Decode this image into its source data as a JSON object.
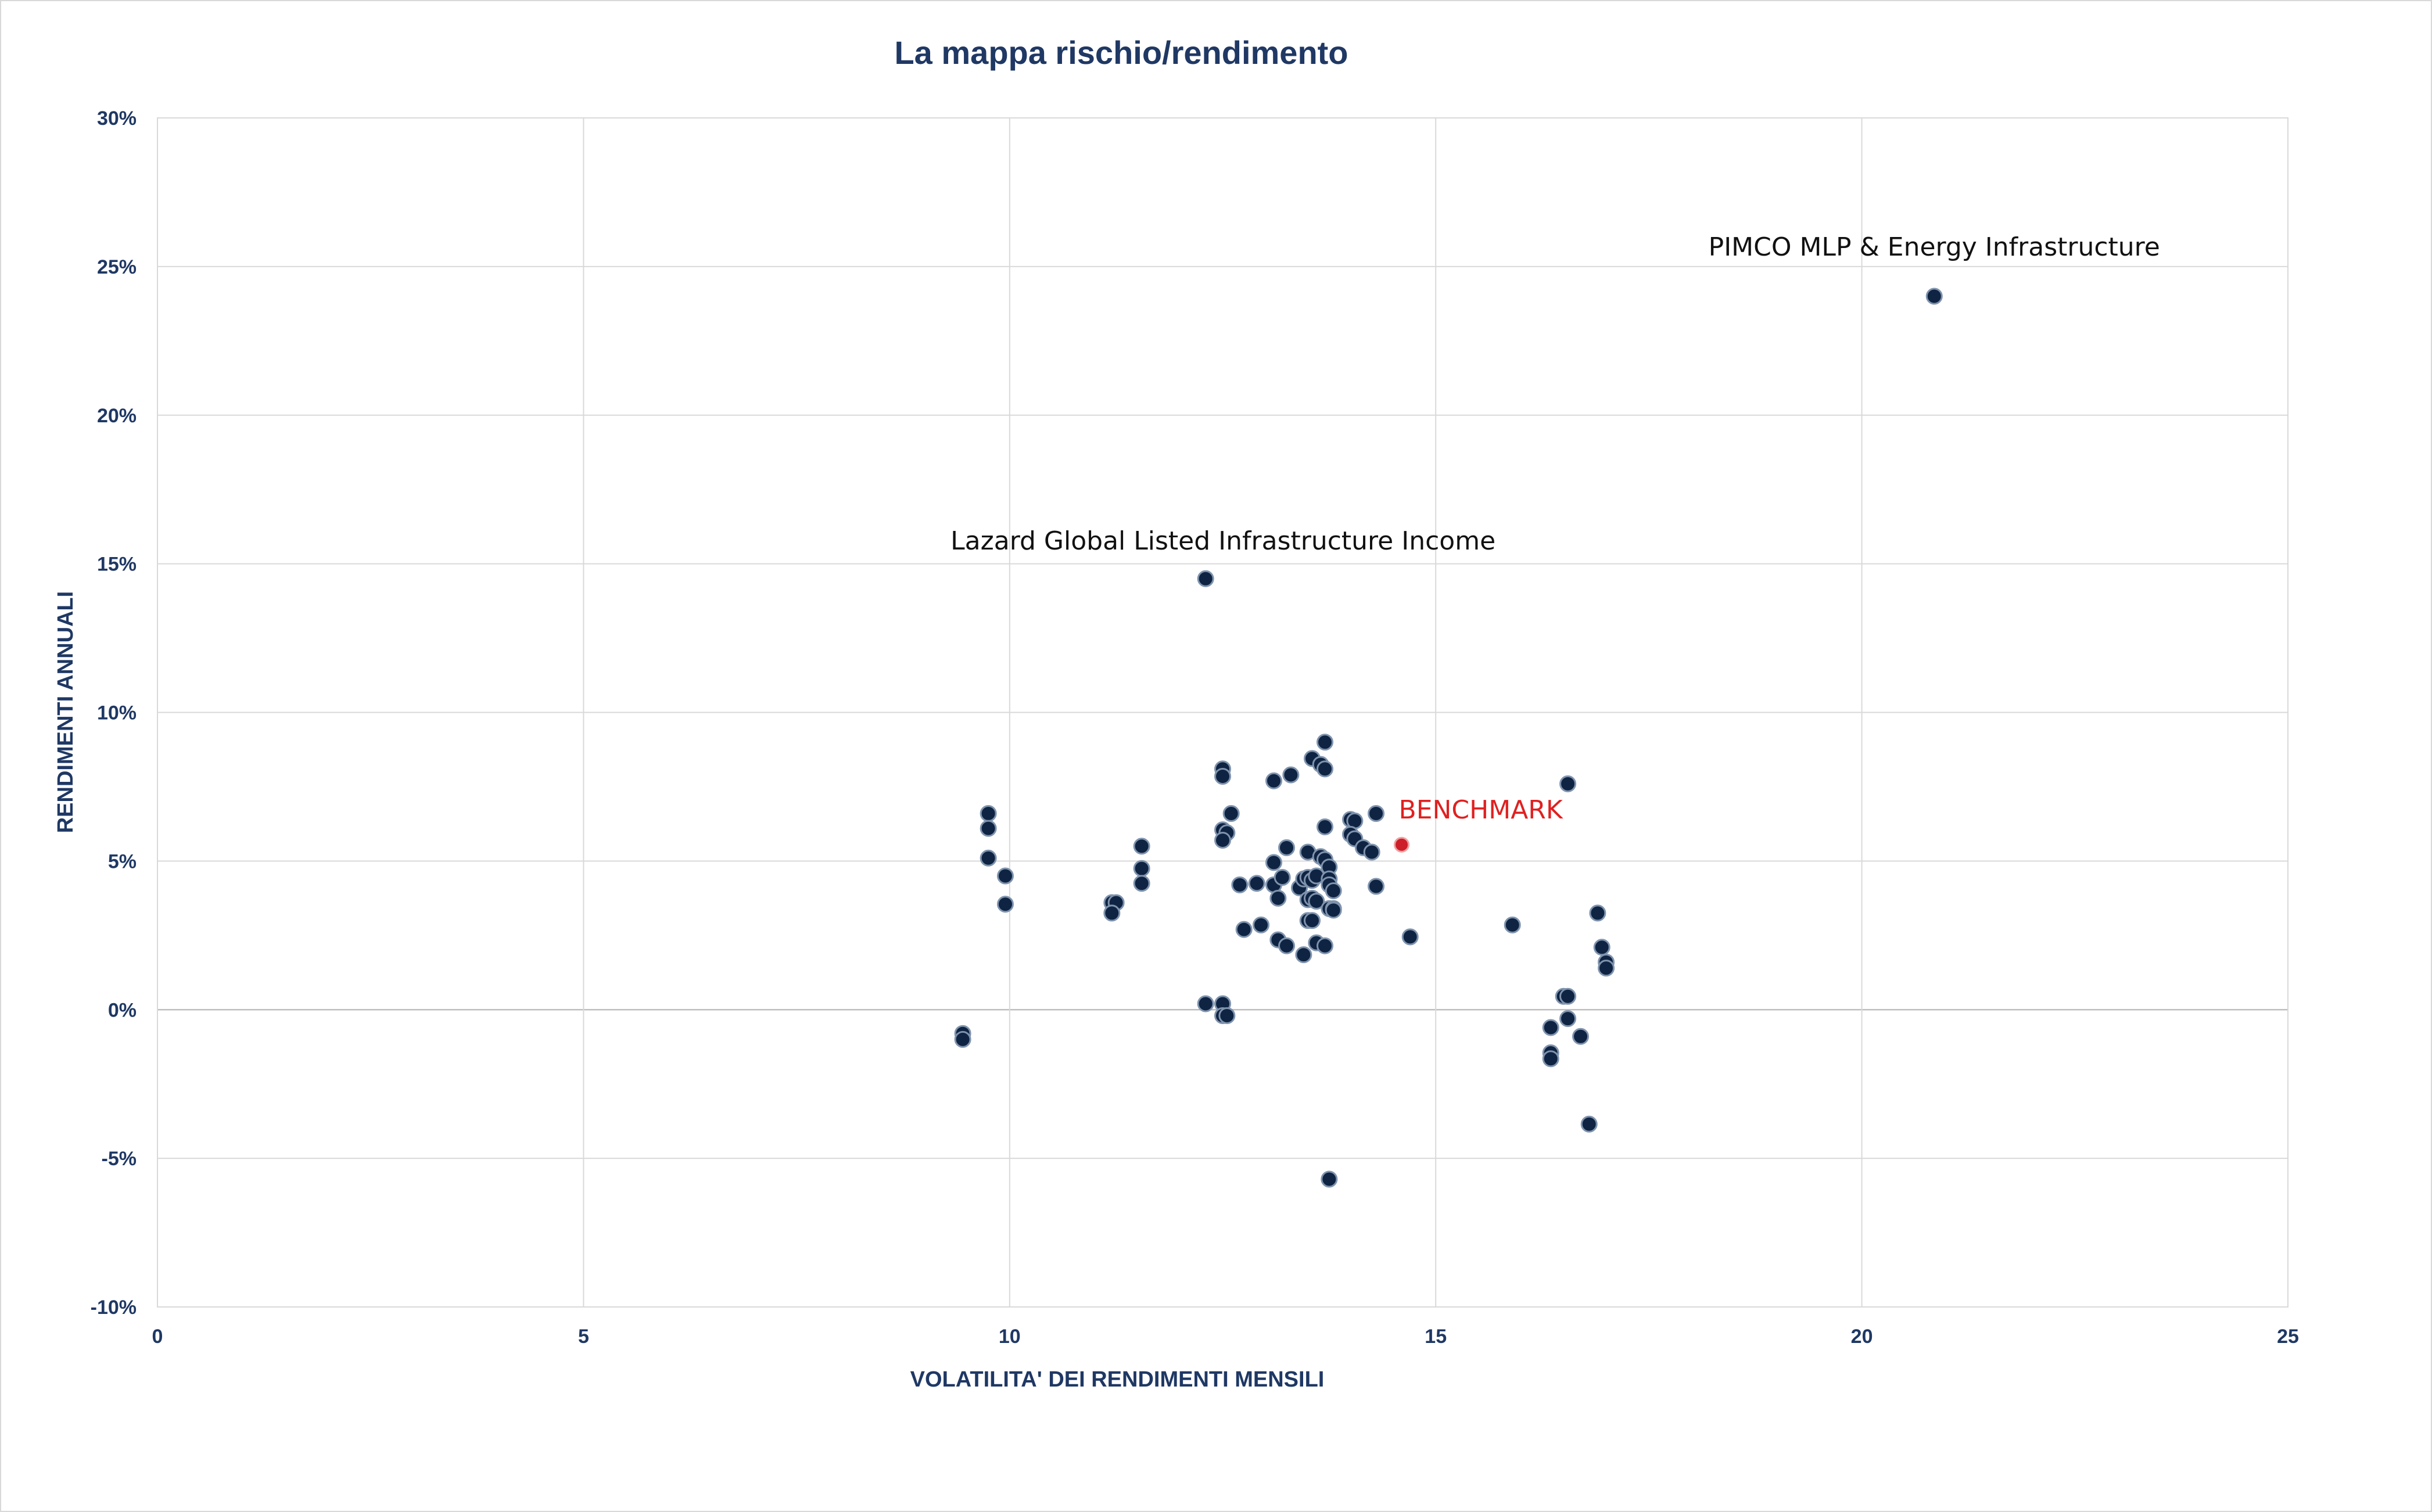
{
  "chart_data": {
    "type": "scatter",
    "title": "La mappa rischio/rendimento",
    "xlabel": "VOLATILITA' DEI RENDIMENTI MENSILI",
    "ylabel": "RENDIMENTI ANNUALI",
    "xlim": [
      0,
      25
    ],
    "ylim": [
      -10,
      30
    ],
    "xticks": [
      0,
      5,
      10,
      15,
      20,
      25
    ],
    "yticks": [
      -10,
      -5,
      0,
      5,
      10,
      15,
      20,
      25,
      30
    ],
    "ytick_labels": [
      "-10%",
      "-5%",
      "0%",
      "5%",
      "10%",
      "15%",
      "20%",
      "25%",
      "30%"
    ],
    "grid": true,
    "colors": {
      "point": "#0f2442",
      "benchmark": "#cc1f2a",
      "text": "#1f3864"
    },
    "series": [
      {
        "points": [
          [
            20.85,
            24.0
          ],
          [
            12.3,
            14.5
          ],
          [
            16.55,
            7.6
          ],
          [
            9.45,
            -0.8
          ],
          [
            9.45,
            -1.0
          ],
          [
            9.75,
            6.6
          ],
          [
            9.75,
            6.1
          ],
          [
            9.75,
            5.1
          ],
          [
            9.95,
            4.5
          ],
          [
            9.95,
            3.55
          ],
          [
            11.2,
            3.6
          ],
          [
            11.25,
            3.6
          ],
          [
            11.2,
            3.25
          ],
          [
            11.55,
            5.5
          ],
          [
            11.55,
            4.75
          ],
          [
            11.55,
            4.25
          ],
          [
            12.3,
            0.2
          ],
          [
            12.5,
            0.2
          ],
          [
            12.5,
            -0.2
          ],
          [
            12.55,
            -0.2
          ],
          [
            12.5,
            8.1
          ],
          [
            12.5,
            7.85
          ],
          [
            12.6,
            6.6
          ],
          [
            12.5,
            6.05
          ],
          [
            12.55,
            5.95
          ],
          [
            12.5,
            5.7
          ],
          [
            12.7,
            4.2
          ],
          [
            12.9,
            4.25
          ],
          [
            12.95,
            2.85
          ],
          [
            12.75,
            2.7
          ],
          [
            13.1,
            7.7
          ],
          [
            13.3,
            7.9
          ],
          [
            13.1,
            4.95
          ],
          [
            13.25,
            5.45
          ],
          [
            13.1,
            4.2
          ],
          [
            13.2,
            4.45
          ],
          [
            13.15,
            3.75
          ],
          [
            13.15,
            2.35
          ],
          [
            13.25,
            2.15
          ],
          [
            13.45,
            1.85
          ],
          [
            13.55,
            8.45
          ],
          [
            13.65,
            8.25
          ],
          [
            13.7,
            9.0
          ],
          [
            13.7,
            8.1
          ],
          [
            13.7,
            6.15
          ],
          [
            13.5,
            5.3
          ],
          [
            13.65,
            5.15
          ],
          [
            13.7,
            5.05
          ],
          [
            13.75,
            4.8
          ],
          [
            13.4,
            4.1
          ],
          [
            13.45,
            4.4
          ],
          [
            13.5,
            4.45
          ],
          [
            13.55,
            4.35
          ],
          [
            13.6,
            4.5
          ],
          [
            13.75,
            4.4
          ],
          [
            13.75,
            4.2
          ],
          [
            13.8,
            4.0
          ],
          [
            13.5,
            3.7
          ],
          [
            13.55,
            3.75
          ],
          [
            13.6,
            3.65
          ],
          [
            13.75,
            3.4
          ],
          [
            13.8,
            3.4
          ],
          [
            13.8,
            3.35
          ],
          [
            13.5,
            3.0
          ],
          [
            13.55,
            3.0
          ],
          [
            13.6,
            2.25
          ],
          [
            13.7,
            2.15
          ],
          [
            13.75,
            -5.7
          ],
          [
            14.0,
            6.4
          ],
          [
            14.05,
            6.35
          ],
          [
            14.0,
            5.9
          ],
          [
            14.05,
            5.75
          ],
          [
            14.15,
            5.45
          ],
          [
            14.25,
            5.3
          ],
          [
            14.3,
            6.6
          ],
          [
            14.3,
            4.15
          ],
          [
            14.7,
            2.45
          ],
          [
            15.9,
            2.85
          ],
          [
            16.35,
            -0.6
          ],
          [
            16.35,
            -1.45
          ],
          [
            16.35,
            -1.65
          ],
          [
            16.5,
            0.45
          ],
          [
            16.55,
            0.45
          ],
          [
            16.55,
            -0.3
          ],
          [
            16.7,
            -0.9
          ],
          [
            16.8,
            -3.85
          ],
          [
            16.9,
            3.25
          ],
          [
            16.95,
            2.1
          ],
          [
            17.0,
            1.6
          ],
          [
            17.0,
            1.4
          ]
        ]
      },
      {
        "name": "BENCHMARK",
        "points": [
          [
            14.6,
            5.55
          ]
        ]
      }
    ],
    "annotations": [
      {
        "text": "PIMCO MLP & Energy Infrastructure",
        "x": 20.85,
        "y": 24.0
      },
      {
        "text": "Lazard Global Listed Infrastructure Income",
        "x": 12.3,
        "y": 14.5
      },
      {
        "text": "BENCHMARK",
        "x": 14.6,
        "y": 5.55
      }
    ]
  }
}
